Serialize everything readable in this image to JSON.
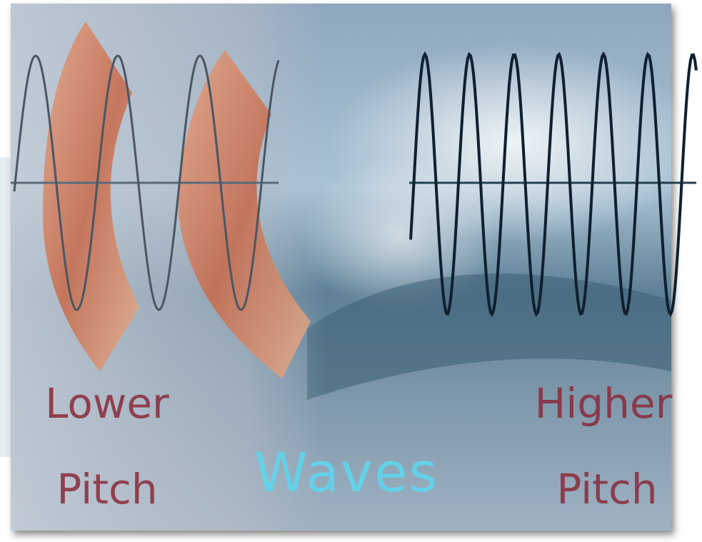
{
  "left_label": {
    "line1": "Lower",
    "line2": "Pitch"
  },
  "center_label": "Waves",
  "right_label": {
    "line1": "Higher",
    "line2": "Pitch"
  }
}
